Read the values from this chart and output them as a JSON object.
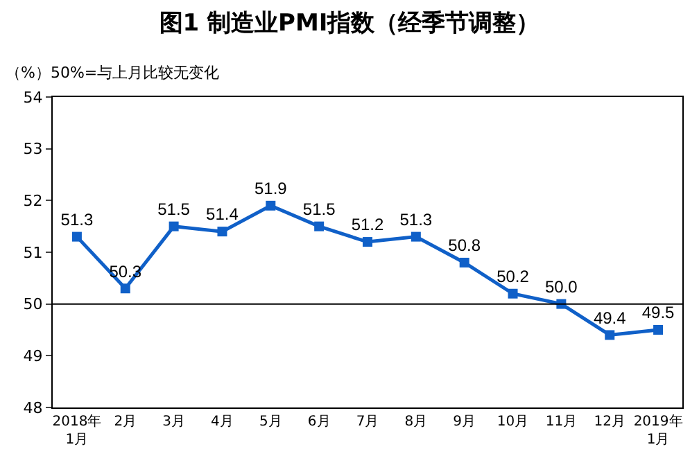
{
  "chart_data": {
    "type": "line",
    "title": "图1 制造业PMI指数（经季节调整）",
    "annotations": [
      "（%）50%=与上月比较无变化"
    ],
    "categories": [
      "2018年\n1月",
      "2月",
      "3月",
      "4月",
      "5月",
      "6月",
      "7月",
      "8月",
      "9月",
      "10月",
      "11月",
      "12月",
      "2019年\n1月"
    ],
    "series": [
      {
        "color": "#1060c8",
        "values": [
          51.3,
          50.3,
          51.5,
          51.4,
          51.9,
          51.5,
          51.2,
          51.3,
          50.8,
          50.2,
          50.0,
          49.4,
          49.5
        ],
        "value_labels": [
          "51.3",
          "50.3",
          "51.5",
          "51.4",
          "51.9",
          "51.5",
          "51.2",
          "51.3",
          "50.8",
          "50.2",
          "50.0",
          "49.4",
          "49.5"
        ]
      }
    ],
    "ylim": [
      48,
      54
    ],
    "yticks": [
      48,
      49,
      50,
      51,
      52,
      53,
      54
    ],
    "ref_lines": [
      {
        "axis": "y",
        "value": 50,
        "color": "#000000"
      }
    ],
    "marker": "square",
    "grid": false,
    "legend": false
  }
}
